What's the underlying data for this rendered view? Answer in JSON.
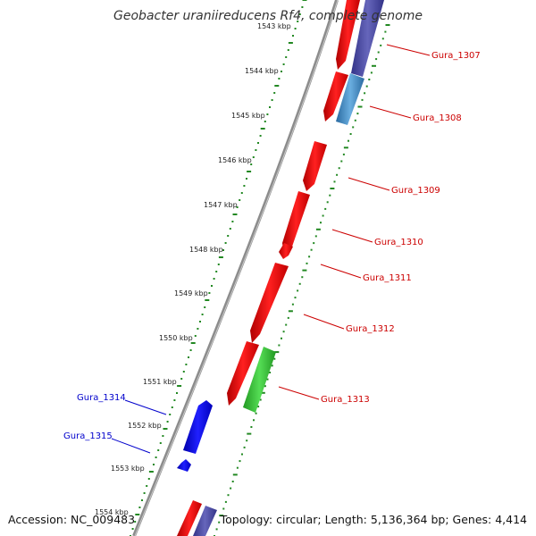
{
  "title": "Geobacter uraniireducens Rf4, complete genome",
  "accession": "Accession: NC_009483",
  "topology": "Topology: circular; Length: 5,136,364 bp; Genes: 4,414",
  "ticks": [
    "1543 kbp",
    "1544 kbp",
    "1545 kbp",
    "1546 kbp",
    "1547 kbp",
    "1548 kbp",
    "1549 kbp",
    "1550 kbp",
    "1551 kbp",
    "1552 kbp",
    "1553 kbp",
    "1554 kbp"
  ],
  "genes": {
    "gura_1307": "Gura_1307",
    "gura_1308": "Gura_1308",
    "gura_1309": "Gura_1309",
    "gura_1310": "Gura_1310",
    "gura_1311": "Gura_1311",
    "gura_1312": "Gura_1312",
    "gura_1313": "Gura_1313",
    "gura_1314": "Gura_1314",
    "gura_1315": "Gura_1315"
  },
  "colors": {
    "forward_gene": "#ff0000",
    "reverse_gene": "#0000ff",
    "rna_gene": "#33cc33",
    "feature_purple": "#5555aa",
    "feature_steelblue": "#4a90c8",
    "backbone": "#888888",
    "scale": "#228822",
    "forward_label": "#cc0000",
    "reverse_label": "#0000cc"
  }
}
